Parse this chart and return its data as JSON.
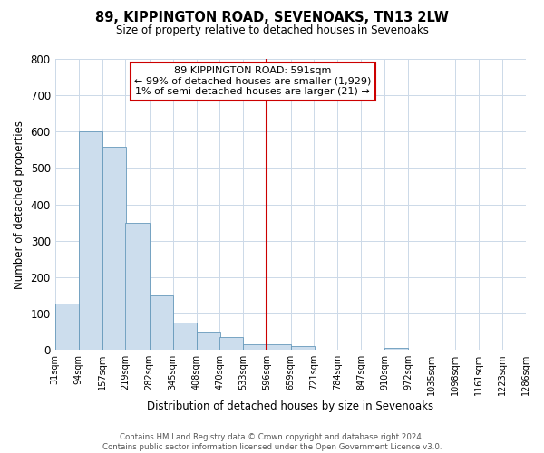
{
  "title": "89, KIPPINGTON ROAD, SEVENOAKS, TN13 2LW",
  "subtitle": "Size of property relative to detached houses in Sevenoaks",
  "xlabel": "Distribution of detached houses by size in Sevenoaks",
  "ylabel": "Number of detached properties",
  "bar_color": "#ccdded",
  "bar_edge_color": "#6699bb",
  "background_color": "#ffffff",
  "grid_color": "#ccd9e8",
  "vline_x": 596,
  "vline_color": "#cc0000",
  "bin_edges": [
    31,
    94,
    157,
    219,
    282,
    345,
    408,
    470,
    533,
    596,
    659,
    721,
    784,
    847,
    910,
    972,
    1035,
    1098,
    1161,
    1223,
    1286
  ],
  "bin_labels": [
    "31sqm",
    "94sqm",
    "157sqm",
    "219sqm",
    "282sqm",
    "345sqm",
    "408sqm",
    "470sqm",
    "533sqm",
    "596sqm",
    "659sqm",
    "721sqm",
    "784sqm",
    "847sqm",
    "910sqm",
    "972sqm",
    "1035sqm",
    "1098sqm",
    "1161sqm",
    "1223sqm",
    "1286sqm"
  ],
  "bar_heights": [
    128,
    600,
    558,
    348,
    150,
    75,
    50,
    35,
    15,
    15,
    10,
    0,
    0,
    0,
    5,
    0,
    0,
    0,
    0,
    0
  ],
  "ylim": [
    0,
    800
  ],
  "yticks": [
    0,
    100,
    200,
    300,
    400,
    500,
    600,
    700,
    800
  ],
  "annotation_title": "89 KIPPINGTON ROAD: 591sqm",
  "annotation_line1": "← 99% of detached houses are smaller (1,929)",
  "annotation_line2": "1% of semi-detached houses are larger (21) →",
  "annotation_box_color": "#cc0000",
  "footer_line1": "Contains HM Land Registry data © Crown copyright and database right 2024.",
  "footer_line2": "Contains public sector information licensed under the Open Government Licence v3.0."
}
